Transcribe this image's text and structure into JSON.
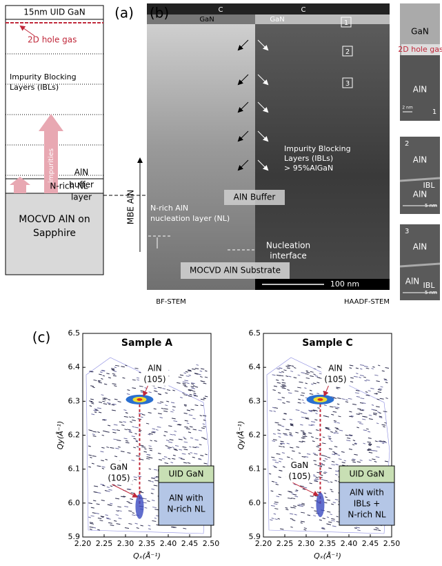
{
  "panel_labels": [
    "(a)",
    "(b)",
    "(c)"
  ],
  "panel_a": {
    "top_layer": "15nm UID GaN",
    "hole_gas": "2D hole gas",
    "ibl": [
      "Impurity Blocking",
      "Layers (IBLs)"
    ],
    "impurities": "impurities",
    "buffer": [
      "AlN",
      "buffer",
      "layer"
    ],
    "nl": "N-rich NL",
    "substrate": [
      "MOCVD AlN on",
      "Sapphire"
    ]
  },
  "panel_b": {
    "cap_left": "C",
    "gan_left": "GaN",
    "cap_right": "C",
    "gan_right": "GaN",
    "boxes": [
      "1",
      "2",
      "3"
    ],
    "ibl": [
      "Impurity Blocking",
      "Layers (IBLs)",
      "> 95%AlGaN"
    ],
    "buffer": "AlN Buffer",
    "nl": [
      "N-rich AlN",
      "nucleation layer (NL)"
    ],
    "interface": [
      "Nucleation",
      "interface"
    ],
    "substrate": "MOCVD AlN Substrate",
    "scale": "100 nm",
    "mbe": "MBE AlN",
    "bf": "BF-STEM",
    "haadf": "HAADF-STEM",
    "insets": [
      {
        "top": "GaN",
        "gas": "2D hole gas",
        "bottom": "AlN",
        "scale": "2 nm",
        "number": "1"
      },
      {
        "number": "2",
        "top": "AlN",
        "ibl": "IBL",
        "bottom": "AlN",
        "scale": "5 nm"
      },
      {
        "number": "3",
        "top": "AlN",
        "ibl": "IBL",
        "bottom": "AlN",
        "scale": "5 nm"
      }
    ]
  },
  "chart_data": [
    {
      "type": "scatter",
      "title": "Sample A",
      "x_label": "Qₓ(Å⁻¹)",
      "y_label": "Qy(Å⁻¹)",
      "xlim": [
        2.2,
        2.5
      ],
      "ylim": [
        5.9,
        6.5
      ],
      "xticks": [
        {
          "value": 2.2,
          "label": "2.20"
        },
        2.25,
        {
          "value": 2.3,
          "label": "2.30"
        },
        2.35,
        {
          "value": 2.4,
          "label": "2.40"
        },
        2.45,
        {
          "value": 2.5,
          "label": "2.50"
        }
      ],
      "yticks": [
        5.9,
        {
          "value": 6,
          "label": "6.0"
        },
        6.1,
        6.2,
        6.3,
        6.4,
        6.5
      ],
      "points": [
        {
          "label": [
            "AlN",
            "(105)"
          ],
          "x": 2.333,
          "y": 6.305
        },
        {
          "label": [
            "GaN",
            "(105)"
          ],
          "x": 2.333,
          "y": 5.99
        }
      ],
      "legend_box": {
        "top": "UID GaN",
        "bottom": [
          "AlN with",
          "N-rich NL"
        ]
      }
    },
    {
      "type": "scatter",
      "title": "Sample C",
      "x_label": "Qₓ(Å⁻¹)",
      "y_label": "Qy(Å⁻¹)",
      "xlim": [
        2.2,
        2.5
      ],
      "ylim": [
        5.9,
        6.5
      ],
      "xticks": [
        {
          "value": 2.2,
          "label": "2.20"
        },
        2.25,
        {
          "value": 2.3,
          "label": "2.30"
        },
        2.35,
        {
          "value": 2.4,
          "label": "2.40"
        },
        2.45,
        {
          "value": 2.5,
          "label": "2.50"
        }
      ],
      "yticks": [
        5.9,
        {
          "value": 6,
          "label": "6.0"
        },
        6.1,
        6.2,
        6.3,
        6.4,
        6.5
      ],
      "points": [
        {
          "label": [
            "AlN",
            "(105)"
          ],
          "x": 2.333,
          "y": 6.305
        },
        {
          "label": [
            "GaN",
            "(105)"
          ],
          "x": 2.333,
          "y": 5.995
        }
      ],
      "legend_box": {
        "top": "UID GaN",
        "bottom": [
          "AlN with",
          "IBLs +",
          "N-rich NL"
        ]
      }
    }
  ]
}
